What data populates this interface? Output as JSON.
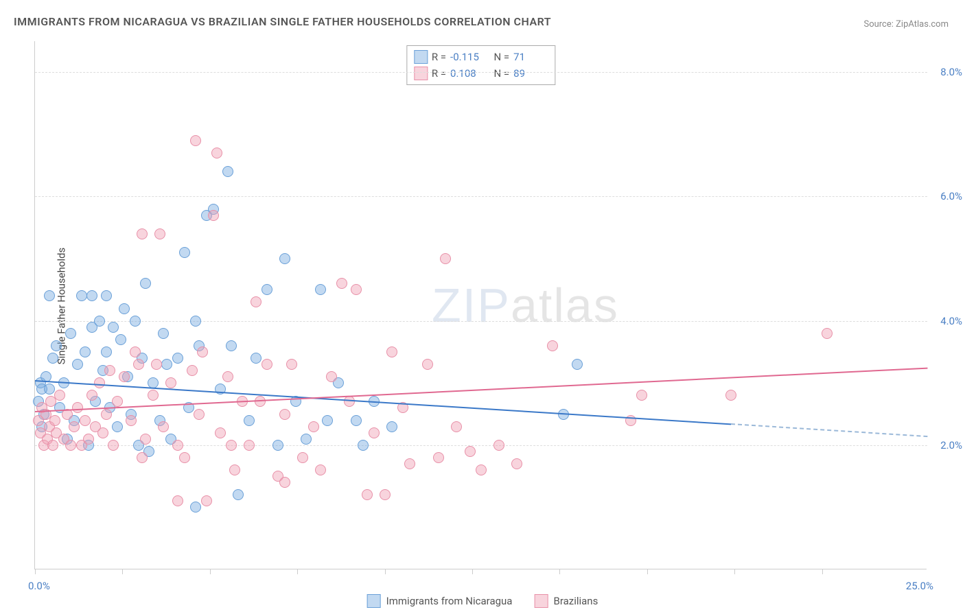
{
  "title": "IMMIGRANTS FROM NICARAGUA VS BRAZILIAN SINGLE FATHER HOUSEHOLDS CORRELATION CHART",
  "source": "Source: ZipAtlas.com",
  "watermark_a": "ZIP",
  "watermark_b": "atlas",
  "chart": {
    "type": "scatter",
    "ylabel": "Single Father Households",
    "xlim": [
      0,
      25
    ],
    "ylim": [
      0,
      8.5
    ],
    "x_min_label": "0.0%",
    "x_max_label": "25.0%",
    "x_ticks": [
      0,
      2.45,
      4.9,
      7.35,
      9.8,
      12.25,
      14.7,
      17.15,
      19.6,
      22.05
    ],
    "y_ticks": [
      2.0,
      4.0,
      6.0,
      8.0
    ],
    "y_tick_labels": [
      "2.0%",
      "4.0%",
      "6.0%",
      "8.0%"
    ],
    "grid_color": "#dddddd",
    "background_color": "#ffffff",
    "axis_label_color": "#4a7fc4",
    "point_radius": 8,
    "series": [
      {
        "name": "Immigrants from Nicaragua",
        "color_fill": "rgba(120,170,225,0.45)",
        "color_stroke": "#6aa0d8",
        "R": "-0.115",
        "N": "71",
        "trend": {
          "x1": 0,
          "y1": 3.05,
          "x2": 19.5,
          "y2": 2.35,
          "dash_to_x": 25,
          "dash_to_y": 2.15
        },
        "points": [
          [
            0.1,
            2.7
          ],
          [
            0.15,
            3.0
          ],
          [
            0.2,
            2.9
          ],
          [
            0.25,
            2.5
          ],
          [
            0.3,
            3.1
          ],
          [
            0.2,
            2.3
          ],
          [
            0.4,
            2.9
          ],
          [
            0.5,
            3.4
          ],
          [
            0.6,
            3.6
          ],
          [
            0.7,
            2.6
          ],
          [
            0.8,
            3.0
          ],
          [
            0.9,
            2.1
          ],
          [
            1.0,
            3.8
          ],
          [
            1.1,
            2.4
          ],
          [
            1.2,
            3.3
          ],
          [
            1.3,
            4.4
          ],
          [
            1.4,
            3.5
          ],
          [
            1.5,
            2.0
          ],
          [
            1.6,
            3.9
          ],
          [
            1.7,
            2.7
          ],
          [
            1.8,
            4.0
          ],
          [
            1.9,
            3.2
          ],
          [
            2.0,
            4.4
          ],
          [
            2.1,
            2.6
          ],
          [
            2.2,
            3.9
          ],
          [
            2.3,
            2.3
          ],
          [
            2.4,
            3.7
          ],
          [
            2.5,
            4.2
          ],
          [
            2.6,
            3.1
          ],
          [
            2.7,
            2.5
          ],
          [
            2.9,
            2.0
          ],
          [
            3.0,
            3.4
          ],
          [
            3.1,
            4.6
          ],
          [
            3.2,
            1.9
          ],
          [
            3.3,
            3.0
          ],
          [
            3.5,
            2.4
          ],
          [
            3.6,
            3.8
          ],
          [
            3.8,
            2.1
          ],
          [
            4.0,
            3.4
          ],
          [
            4.2,
            5.1
          ],
          [
            4.3,
            2.6
          ],
          [
            4.5,
            1.0
          ],
          [
            4.6,
            3.6
          ],
          [
            4.8,
            5.7
          ],
          [
            5.0,
            5.8
          ],
          [
            5.2,
            2.9
          ],
          [
            5.4,
            6.4
          ],
          [
            5.5,
            3.6
          ],
          [
            5.7,
            1.2
          ],
          [
            6.0,
            2.4
          ],
          [
            6.2,
            3.4
          ],
          [
            6.5,
            4.5
          ],
          [
            6.8,
            2.0
          ],
          [
            7.0,
            5.0
          ],
          [
            7.3,
            2.7
          ],
          [
            7.6,
            2.1
          ],
          [
            8.0,
            4.5
          ],
          [
            8.2,
            2.4
          ],
          [
            8.5,
            3.0
          ],
          [
            9.0,
            2.4
          ],
          [
            9.2,
            2.0
          ],
          [
            9.5,
            2.7
          ],
          [
            10.0,
            2.3
          ],
          [
            14.8,
            2.5
          ],
          [
            15.2,
            3.3
          ],
          [
            0.4,
            4.4
          ],
          [
            1.6,
            4.4
          ],
          [
            2.0,
            3.5
          ],
          [
            2.8,
            4.0
          ],
          [
            3.7,
            3.3
          ],
          [
            4.5,
            4.0
          ]
        ]
      },
      {
        "name": "Brazilians",
        "color_fill": "rgba(240,160,180,0.45)",
        "color_stroke": "#e890a8",
        "R": "0.108",
        "N": "89",
        "trend": {
          "x1": 0,
          "y1": 2.55,
          "x2": 25,
          "y2": 3.25
        },
        "points": [
          [
            0.1,
            2.4
          ],
          [
            0.15,
            2.2
          ],
          [
            0.2,
            2.6
          ],
          [
            0.25,
            2.0
          ],
          [
            0.3,
            2.5
          ],
          [
            0.35,
            2.1
          ],
          [
            0.4,
            2.3
          ],
          [
            0.45,
            2.7
          ],
          [
            0.5,
            2.0
          ],
          [
            0.55,
            2.4
          ],
          [
            0.6,
            2.2
          ],
          [
            0.7,
            2.8
          ],
          [
            0.8,
            2.1
          ],
          [
            0.9,
            2.5
          ],
          [
            1.0,
            2.0
          ],
          [
            1.1,
            2.3
          ],
          [
            1.2,
            2.6
          ],
          [
            1.3,
            2.0
          ],
          [
            1.4,
            2.4
          ],
          [
            1.5,
            2.1
          ],
          [
            1.6,
            2.8
          ],
          [
            1.7,
            2.3
          ],
          [
            1.8,
            3.0
          ],
          [
            1.9,
            2.2
          ],
          [
            2.0,
            2.5
          ],
          [
            2.1,
            3.2
          ],
          [
            2.2,
            2.0
          ],
          [
            2.3,
            2.7
          ],
          [
            2.5,
            3.1
          ],
          [
            2.7,
            2.4
          ],
          [
            2.9,
            3.3
          ],
          [
            3.0,
            5.4
          ],
          [
            3.1,
            2.1
          ],
          [
            3.3,
            2.8
          ],
          [
            3.5,
            5.4
          ],
          [
            3.6,
            2.3
          ],
          [
            3.8,
            3.0
          ],
          [
            4.0,
            2.0
          ],
          [
            4.2,
            1.8
          ],
          [
            4.4,
            3.2
          ],
          [
            4.5,
            6.9
          ],
          [
            4.6,
            2.5
          ],
          [
            4.8,
            1.1
          ],
          [
            5.0,
            5.7
          ],
          [
            5.1,
            6.7
          ],
          [
            5.2,
            2.2
          ],
          [
            5.4,
            3.1
          ],
          [
            5.6,
            1.6
          ],
          [
            5.8,
            2.7
          ],
          [
            6.0,
            2.0
          ],
          [
            6.2,
            4.3
          ],
          [
            6.5,
            3.3
          ],
          [
            6.8,
            1.5
          ],
          [
            7.0,
            2.5
          ],
          [
            7.2,
            3.3
          ],
          [
            7.5,
            1.8
          ],
          [
            7.8,
            2.3
          ],
          [
            8.0,
            1.6
          ],
          [
            8.3,
            3.1
          ],
          [
            8.6,
            4.6
          ],
          [
            8.8,
            2.7
          ],
          [
            9.0,
            4.5
          ],
          [
            9.3,
            1.2
          ],
          [
            9.5,
            2.2
          ],
          [
            9.8,
            1.2
          ],
          [
            10.0,
            3.5
          ],
          [
            10.3,
            2.6
          ],
          [
            10.5,
            1.7
          ],
          [
            11.0,
            3.3
          ],
          [
            11.3,
            1.8
          ],
          [
            11.5,
            5.0
          ],
          [
            11.8,
            2.3
          ],
          [
            12.2,
            1.9
          ],
          [
            12.5,
            1.6
          ],
          [
            13.0,
            2.0
          ],
          [
            13.5,
            1.7
          ],
          [
            14.5,
            3.6
          ],
          [
            16.7,
            2.4
          ],
          [
            17.0,
            2.8
          ],
          [
            19.5,
            2.8
          ],
          [
            22.2,
            3.8
          ],
          [
            4.0,
            1.1
          ],
          [
            5.5,
            2.0
          ],
          [
            6.3,
            2.7
          ],
          [
            7.0,
            1.4
          ],
          [
            3.0,
            1.8
          ],
          [
            2.8,
            3.5
          ],
          [
            3.4,
            3.3
          ],
          [
            4.7,
            3.5
          ]
        ]
      }
    ],
    "bottom_legend": [
      {
        "label": "Immigrants from Nicaragua",
        "fill": "rgba(120,170,225,0.45)",
        "stroke": "#6aa0d8"
      },
      {
        "label": "Brazilians",
        "fill": "rgba(240,160,180,0.45)",
        "stroke": "#e890a8"
      }
    ]
  }
}
